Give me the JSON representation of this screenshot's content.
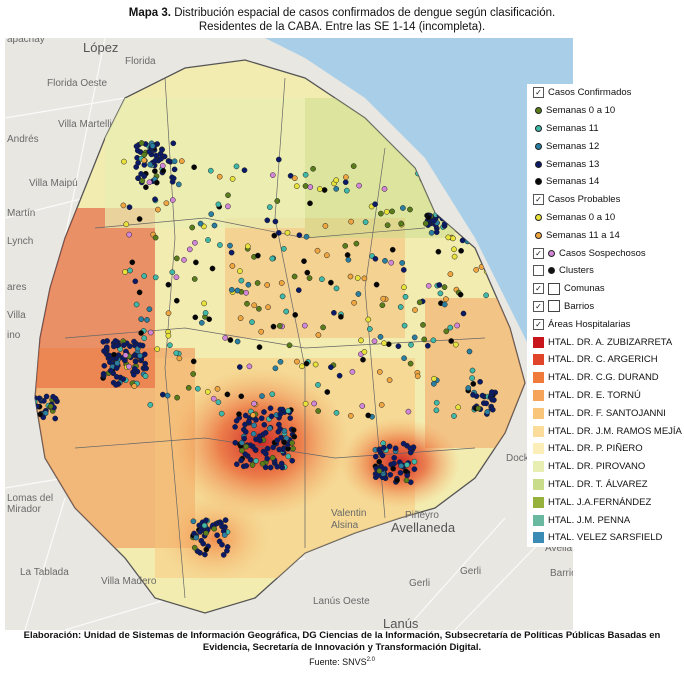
{
  "title": {
    "prefix": "Mapa 3.",
    "line1": "Distribución espacial de casos confirmados de dengue según clasificación.",
    "line2": "Residentes de la CABA. Entre las SE 1-14 (incompleta)."
  },
  "places": [
    "apachay",
    "López",
    "Florida",
    "Florida Oeste",
    "Villa Martelli",
    "Andrés",
    "Villa Maipú",
    "Martín",
    "Lynch",
    "ares",
    "Villa",
    "ino",
    "Lomas del Mirador",
    "Valentin Alsina",
    "Avellaneda",
    "Piñeyro",
    "Dock",
    "Gerli",
    "La Tablada",
    "Villa Madero",
    "Lanús Oeste",
    "Lanús",
    "Gerli",
    "Barrios",
    "Avella"
  ],
  "legend": {
    "items": [
      {
        "label": "Casos Confirmados",
        "kind": "check",
        "checked": true
      },
      {
        "label": "Semanas 0 a 10",
        "kind": "dot",
        "color": "#5a7d1c"
      },
      {
        "label": "Semanas 11",
        "kind": "dot",
        "color": "#3fb8a8"
      },
      {
        "label": "Semanas 12",
        "kind": "dot",
        "color": "#2a7fa0"
      },
      {
        "label": "Semanas 13",
        "kind": "dot",
        "color": "#0a1a66"
      },
      {
        "label": "Semanas 14",
        "kind": "dot",
        "color": "#050505"
      },
      {
        "label": "Casos Probables",
        "kind": "check",
        "checked": true
      },
      {
        "label": "Semanas 0 a 10",
        "kind": "dot",
        "color": "#e8e23a"
      },
      {
        "label": "Semanas 11 a 14",
        "kind": "dot",
        "color": "#f0a640"
      },
      {
        "label": "Casos Sospechosos",
        "kind": "checkdot",
        "checked": true,
        "color": "#d286d8"
      },
      {
        "label": "Clusters",
        "kind": "checkdot",
        "checked": false,
        "color": "#111111"
      },
      {
        "label": "Comunas",
        "kind": "checkbox",
        "checked": true
      },
      {
        "label": "Barrios",
        "kind": "checkbox",
        "checked": true
      },
      {
        "label": "Áreas Hospitalarias",
        "kind": "check",
        "checked": true
      },
      {
        "label": "HTAL. DR. A. ZUBIZARRETA",
        "kind": "swatch",
        "color": "#c8141b"
      },
      {
        "label": "HTAL. DR. C. ARGERICH",
        "kind": "swatch",
        "color": "#e0452a"
      },
      {
        "label": "HTAL. DR. C.G. DURAND",
        "kind": "swatch",
        "color": "#f07a3a"
      },
      {
        "label": "HTAL. DR. E. TORNÚ",
        "kind": "swatch",
        "color": "#f5a45a"
      },
      {
        "label": "HTAL. DR. F. SANTOJANNI",
        "kind": "swatch",
        "color": "#f8c57a"
      },
      {
        "label": "HTAL. DR. J.M. RAMOS MEJÍA",
        "kind": "swatch",
        "color": "#fbdc9a"
      },
      {
        "label": "HTAL. DR. P. PIÑERO",
        "kind": "swatch",
        "color": "#fbeeb8"
      },
      {
        "label": "HTAL. DR. PIROVANO",
        "kind": "swatch",
        "color": "#e8eeb2"
      },
      {
        "label": "HTAL. DR. T. ÁLVAREZ",
        "kind": "swatch",
        "color": "#c8dc8a"
      },
      {
        "label": "HTAL. J.A.FERNÁNDEZ",
        "kind": "swatch",
        "color": "#96b23c"
      },
      {
        "label": "HTAL. J.M. PENNA",
        "kind": "swatch",
        "color": "#6ab8a0"
      },
      {
        "label": "HTAL. VELEZ SARSFIELD",
        "kind": "swatch",
        "color": "#3a8cb4"
      }
    ]
  },
  "footer": {
    "line1": "Elaboración: Unidad de Sistemas de Información Geográfica, DG Ciencias de la Información, Subsecretaría de Políticas Públicas Basadas en",
    "line2": "Evidencia, Secretaría de Innovación y Transformación Digital.",
    "source": "Fuente: SNVS",
    "source_sup": "2.0"
  },
  "colors": {
    "water": "#a9cfe8",
    "land": "#e8e7e2",
    "city_base": "#f3ecb0",
    "hotspot": "#d8281b"
  }
}
